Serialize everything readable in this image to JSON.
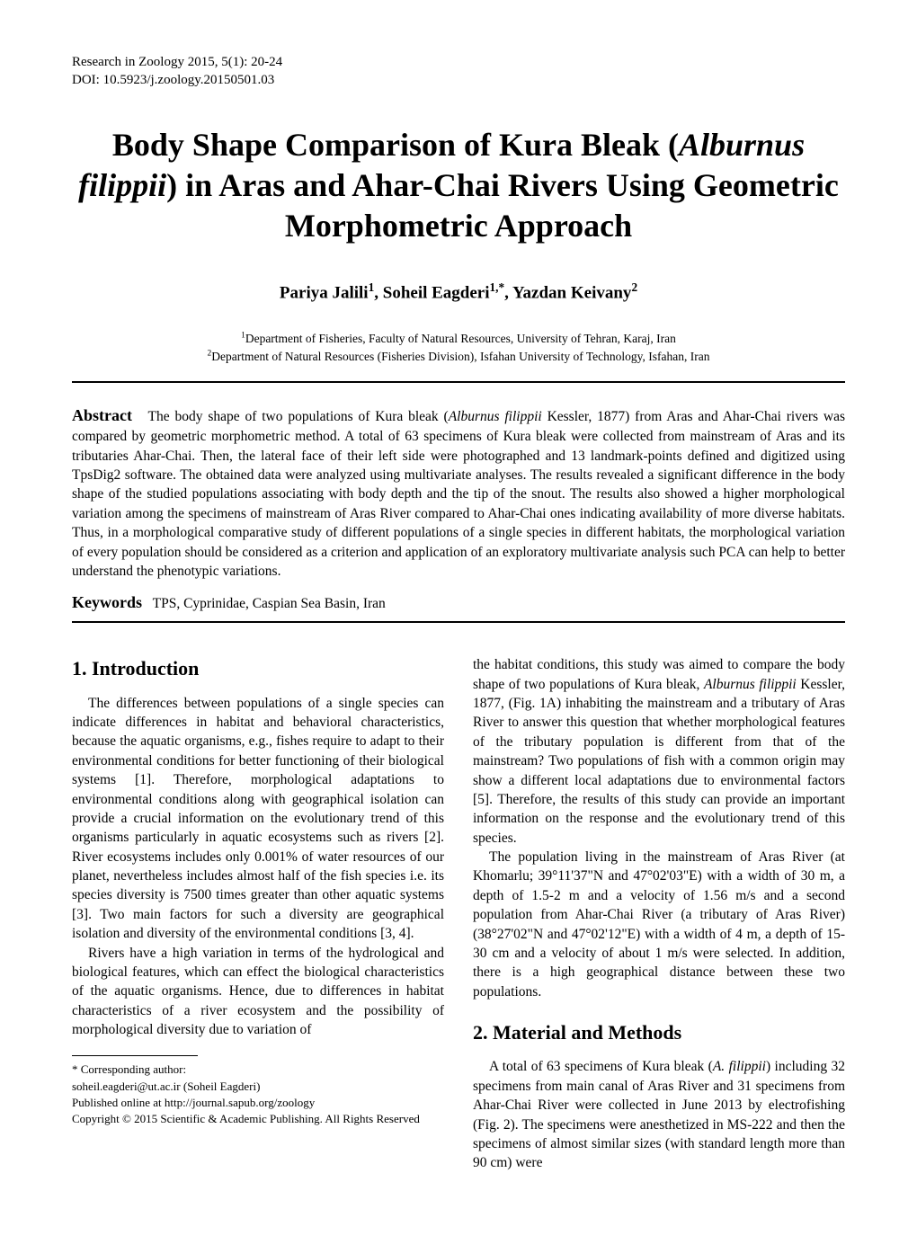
{
  "header": {
    "journal_line": "Research in Zoology 2015, 5(1): 20-24",
    "doi_line": "DOI: 10.5923/j.zoology.20150501.03"
  },
  "title": "Body Shape Comparison of Kura Bleak (Alburnus filippii) in Aras and Ahar-Chai Rivers Using Geometric Morphometric Approach",
  "title_segments": {
    "pre": "Body Shape Comparison of Kura Bleak (",
    "italic": "Alburnus filippii",
    "post": ") in Aras and Ahar-Chai Rivers Using Geometric Morphometric Approach"
  },
  "authors_line": {
    "a1": "Pariya Jalili",
    "a1_sup": "1",
    "a2": "Soheil Eagderi",
    "a2_sup": "1,*",
    "a3": "Yazdan Keivany",
    "a3_sup": "2"
  },
  "affiliations": {
    "line1_sup": "1",
    "line1": "Department of Fisheries, Faculty of Natural Resources, University of Tehran, Karaj, Iran",
    "line2_sup": "2",
    "line2": "Department of Natural Resources (Fisheries Division), Isfahan University of Technology, Isfahan, Iran"
  },
  "abstract": {
    "label": "Abstract",
    "text_pre": "The body shape of two populations of Kura bleak (",
    "text_italic": "Alburnus filippii",
    "text_post": " Kessler, 1877) from Aras and Ahar-Chai rivers was compared by geometric morphometric method. A total of 63 specimens of Kura bleak were collected from mainstream of Aras and its tributaries Ahar-Chai. Then, the lateral face of their left side were photographed and 13 landmark-points defined and digitized using TpsDig2 software. The obtained data were analyzed using multivariate analyses. The results revealed a significant difference in the body shape of the studied populations associating with body depth and the tip of the snout. The results also showed a higher morphological variation among the specimens of mainstream of Aras River compared to Ahar-Chai ones indicating availability of more diverse habitats. Thus, in a morphological comparative study of different populations of a single species in different habitats, the morphological variation of every population should be considered as a criterion and application of an exploratory multivariate analysis such PCA can help to better understand the phenotypic variations."
  },
  "keywords": {
    "label": "Keywords",
    "text": "TPS, Cyprinidae, Caspian Sea Basin, Iran"
  },
  "sections": {
    "intro_heading": "1. Introduction",
    "intro_p1": "The differences between populations of a single species can indicate differences in habitat and behavioral characteristics, because the aquatic organisms, e.g., fishes require to adapt to their environmental conditions for better functioning of their biological systems [1]. Therefore, morphological adaptations to environmental conditions along with geographical isolation can provide a crucial information on the evolutionary trend of this organisms particularly in aquatic ecosystems such as rivers [2]. River ecosystems includes only 0.001% of water resources of our planet, nevertheless includes almost half of the fish species i.e. its species diversity is 7500 times greater than other aquatic systems [3]. Two main factors for such a diversity are geographical isolation and diversity of the environmental conditions [3, 4].",
    "intro_p2": "Rivers have a high variation in terms of the hydrological and biological features, which can effect the biological characteristics of the aquatic organisms. Hence, due to differences in habitat characteristics of a river ecosystem and the possibility of morphological diversity due to variation of",
    "col2_p1_pre": "the habitat conditions, this study was aimed to compare the body shape of two populations of Kura bleak, ",
    "col2_p1_italic": "Alburnus filippii",
    "col2_p1_post": " Kessler, 1877, (Fig. 1A) inhabiting the mainstream and a tributary of Aras River to answer this question that whether morphological features of the tributary population is different from that of the mainstream? Two populations of fish with a common origin may show a different local adaptations due to environmental factors [5]. Therefore, the results of this study can provide an important information on the response and the evolutionary trend of this species.",
    "col2_p2": "The population living in the mainstream of Aras River (at Khomarlu; 39°11'37\"N and 47°02'03\"E) with a width of 30 m, a depth of 1.5-2 m and a velocity of 1.56 m/s and a second population from Ahar-Chai River (a tributary of Aras River) (38°27'02\"N and 47°02'12\"E) with a width of 4 m, a depth of 15-30 cm and a velocity of about 1 m/s were selected. In addition, there is a high geographical distance between these two populations.",
    "methods_heading": "2. Material and Methods",
    "methods_p1_pre": "A total of 63 specimens of Kura bleak (",
    "methods_p1_italic": "A. filippii",
    "methods_p1_post": ") including 32 specimens from main canal of Aras River and 31 specimens from Ahar-Chai River were collected in June 2013 by electrofishing (Fig. 2). The specimens were anesthetized in MS-222 and then the specimens of almost similar sizes (with standard length more than 90 cm) were"
  },
  "footnotes": {
    "corr_label": "* Corresponding author:",
    "email": "soheil.eagderi@ut.ac.ir (Soheil Eagderi)",
    "published": "Published online at http://journal.sapub.org/zoology",
    "copyright": "Copyright © 2015 Scientific & Academic Publishing. All Rights Reserved"
  }
}
